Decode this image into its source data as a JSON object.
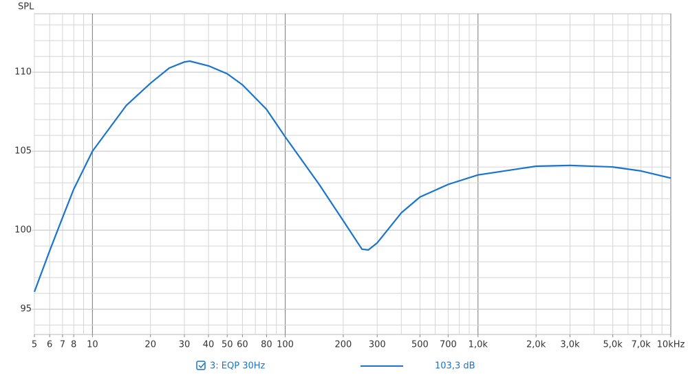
{
  "chart_data": {
    "type": "line",
    "y_label": "SPL",
    "log_x": true,
    "grid": true,
    "x": [
      5,
      6,
      7,
      8,
      10,
      15,
      20,
      25,
      30,
      32,
      40,
      50,
      60,
      80,
      100,
      150,
      200,
      250,
      270,
      300,
      400,
      500,
      700,
      1000,
      2000,
      3000,
      5000,
      7000,
      10000
    ],
    "series": [
      {
        "name": "3: EQP 30Hz",
        "color": "#1874cd",
        "values": [
          96.1,
          98.7,
          100.8,
          102.6,
          105.0,
          107.9,
          109.3,
          110.26,
          110.65,
          110.7,
          110.4,
          109.9,
          109.2,
          107.65,
          105.9,
          102.9,
          100.6,
          98.8,
          98.75,
          99.2,
          101.1,
          102.1,
          102.9,
          103.5,
          104.05,
          104.1,
          104.0,
          103.75,
          103.3
        ]
      }
    ],
    "legend_value": "103,3 dB",
    "xlim": [
      5,
      10000
    ],
    "ylim": [
      93.4,
      113.7
    ],
    "xticks": [
      5,
      6,
      7,
      8,
      10,
      20,
      30,
      40,
      50,
      60,
      80,
      100,
      200,
      300,
      500,
      700,
      {
        "value": 1000,
        "label": "1,0k"
      },
      {
        "value": 2000,
        "label": "2,0k"
      },
      {
        "value": 3000,
        "label": "3,0k"
      },
      {
        "value": 5000,
        "label": "5,0k"
      },
      {
        "value": 7000,
        "label": "7,0k"
      },
      {
        "value": 10000,
        "label": "10kHz"
      }
    ],
    "yticks": [
      95,
      100,
      105,
      110
    ]
  }
}
